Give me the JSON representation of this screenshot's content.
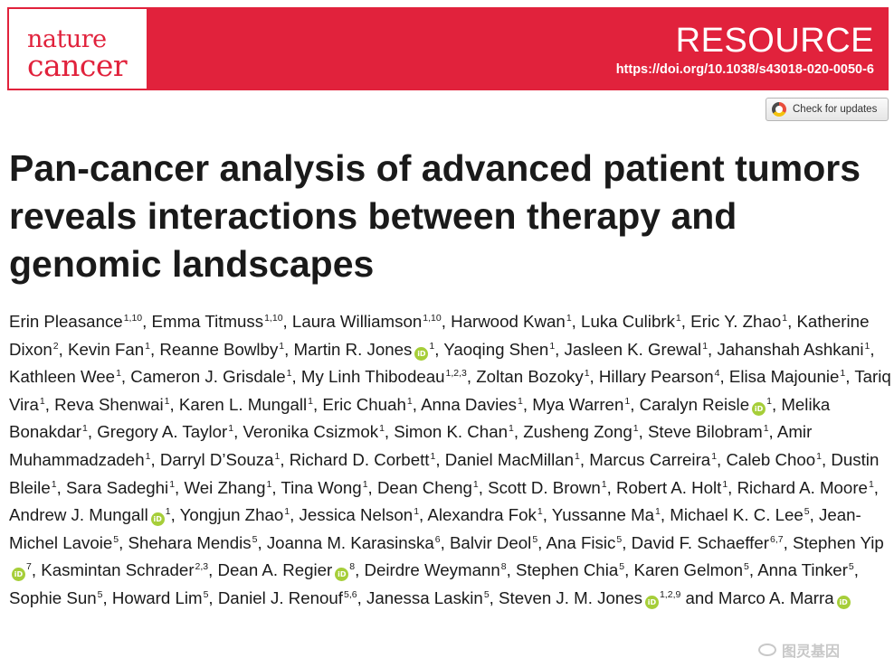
{
  "journal": {
    "name_line1": "nature",
    "name_line2": "cancer"
  },
  "header": {
    "article_type": "RESOURCE",
    "doi": "https://doi.org/10.1038/s43018-020-0050-6"
  },
  "check_updates": {
    "label": "Check for updates"
  },
  "title": "Pan-cancer analysis of advanced patient tumors reveals interactions between therapy and genomic landscapes",
  "authors": [
    {
      "name": "Erin Pleasance",
      "aff": "1,10"
    },
    {
      "name": "Emma Titmuss",
      "aff": "1,10"
    },
    {
      "name": "Laura Williamson",
      "aff": "1,10"
    },
    {
      "name": "Harwood Kwan",
      "aff": "1"
    },
    {
      "name": "Luka Culibrk",
      "aff": "1"
    },
    {
      "name": "Eric Y. Zhao",
      "aff": "1"
    },
    {
      "name": "Katherine Dixon",
      "aff": "2"
    },
    {
      "name": "Kevin Fan",
      "aff": "1"
    },
    {
      "name": "Reanne Bowlby",
      "aff": "1"
    },
    {
      "name": "Martin R. Jones",
      "aff": "1",
      "orcid": true
    },
    {
      "name": "Yaoqing Shen",
      "aff": "1"
    },
    {
      "name": "Jasleen K. Grewal",
      "aff": "1"
    },
    {
      "name": "Jahanshah Ashkani",
      "aff": "1"
    },
    {
      "name": "Kathleen Wee",
      "aff": "1"
    },
    {
      "name": "Cameron J. Grisdale",
      "aff": "1"
    },
    {
      "name": "My Linh Thibodeau",
      "aff": "1,2,3"
    },
    {
      "name": "Zoltan Bozoky",
      "aff": "1"
    },
    {
      "name": "Hillary Pearson",
      "aff": "4"
    },
    {
      "name": "Elisa Majounie",
      "aff": "1"
    },
    {
      "name": "Tariq Vira",
      "aff": "1"
    },
    {
      "name": "Reva Shenwai",
      "aff": "1"
    },
    {
      "name": "Karen L. Mungall",
      "aff": "1"
    },
    {
      "name": "Eric Chuah",
      "aff": "1"
    },
    {
      "name": "Anna Davies",
      "aff": "1"
    },
    {
      "name": "Mya Warren",
      "aff": "1"
    },
    {
      "name": "Caralyn Reisle",
      "aff": "1",
      "orcid": true
    },
    {
      "name": "Melika Bonakdar",
      "aff": "1"
    },
    {
      "name": "Gregory A. Taylor",
      "aff": "1"
    },
    {
      "name": "Veronika Csizmok",
      "aff": "1"
    },
    {
      "name": "Simon K. Chan",
      "aff": "1"
    },
    {
      "name": "Zusheng Zong",
      "aff": "1"
    },
    {
      "name": "Steve Bilobram",
      "aff": "1"
    },
    {
      "name": "Amir Muhammadzadeh",
      "aff": "1"
    },
    {
      "name": "Darryl D’Souza",
      "aff": "1"
    },
    {
      "name": "Richard D. Corbett",
      "aff": "1"
    },
    {
      "name": "Daniel MacMillan",
      "aff": "1"
    },
    {
      "name": "Marcus Carreira",
      "aff": "1"
    },
    {
      "name": "Caleb Choo",
      "aff": "1"
    },
    {
      "name": "Dustin Bleile",
      "aff": "1"
    },
    {
      "name": "Sara Sadeghi",
      "aff": "1"
    },
    {
      "name": "Wei Zhang",
      "aff": "1"
    },
    {
      "name": "Tina Wong",
      "aff": "1"
    },
    {
      "name": "Dean Cheng",
      "aff": "1"
    },
    {
      "name": "Scott D. Brown",
      "aff": "1"
    },
    {
      "name": "Robert A. Holt",
      "aff": "1"
    },
    {
      "name": "Richard A. Moore",
      "aff": "1"
    },
    {
      "name": "Andrew J. Mungall",
      "aff": "1",
      "orcid": true
    },
    {
      "name": "Yongjun Zhao",
      "aff": "1"
    },
    {
      "name": "Jessica Nelson",
      "aff": "1"
    },
    {
      "name": "Alexandra Fok",
      "aff": "1"
    },
    {
      "name": "Yussanne Ma",
      "aff": "1"
    },
    {
      "name": "Michael K. C. Lee",
      "aff": "5"
    },
    {
      "name": "Jean-Michel Lavoie",
      "aff": "5"
    },
    {
      "name": "Shehara Mendis",
      "aff": "5"
    },
    {
      "name": "Joanna M. Karasinska",
      "aff": "6"
    },
    {
      "name": "Balvir Deol",
      "aff": "5"
    },
    {
      "name": "Ana Fisic",
      "aff": "5"
    },
    {
      "name": "David F. Schaeffer",
      "aff": "6,7"
    },
    {
      "name": "Stephen Yip",
      "aff": "7",
      "orcid": true
    },
    {
      "name": "Kasmintan Schrader",
      "aff": "2,3"
    },
    {
      "name": "Dean A. Regier",
      "aff": "8",
      "orcid": true
    },
    {
      "name": "Deirdre Weymann",
      "aff": "8"
    },
    {
      "name": "Stephen Chia",
      "aff": "5"
    },
    {
      "name": "Karen Gelmon",
      "aff": "5"
    },
    {
      "name": "Anna Tinker",
      "aff": "5"
    },
    {
      "name": "Sophie Sun",
      "aff": "5"
    },
    {
      "name": "Howard Lim",
      "aff": "5"
    },
    {
      "name": "Daniel J. Renouf",
      "aff": "5,6"
    },
    {
      "name": "Janessa Laskin",
      "aff": "5"
    },
    {
      "name": "Steven J. M. Jones",
      "aff": "1,2,9",
      "orcid": true
    },
    {
      "name": "Marco A. Marra",
      "aff": "",
      "orcid": true
    }
  ],
  "author_separator": ", ",
  "author_last_conjunction": " and ",
  "watermark": {
    "text": "图灵基因"
  }
}
